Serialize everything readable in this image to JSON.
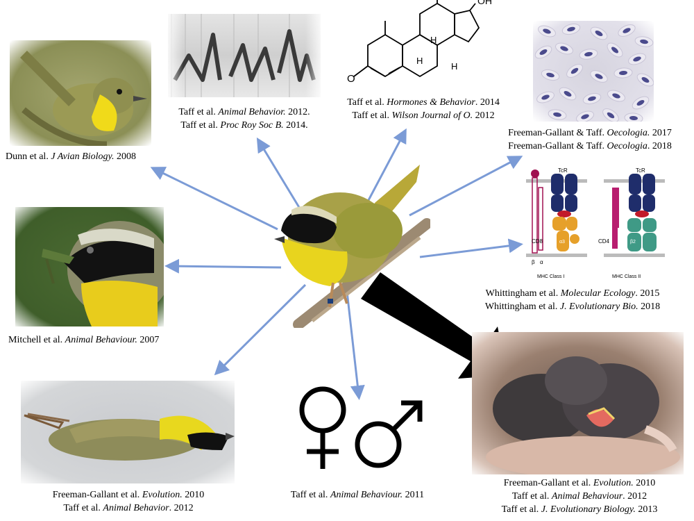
{
  "arrow_color": "#7b9bd6",
  "big_arrow_color": "#000000",
  "captions": {
    "warbler": {
      "line1_pre": "Dunn et al. ",
      "line1_it": "J Avian Biology.",
      "line1_post": " 2008"
    },
    "spectrogram": {
      "line1_pre": "Taff et al. ",
      "line1_it": "Animal Behavior.",
      "line1_post": " 2012.",
      "line2_pre": "Taff et al. ",
      "line2_it": "Proc Roy Soc B.",
      "line2_post": " 2014."
    },
    "hormone": {
      "line1_pre": "Taff et al. ",
      "line1_it": "Hormones & Behavior",
      "line1_post": ". 2014",
      "line2_pre": "Taff et al. ",
      "line2_it": "Wilson Journal of O.",
      "line2_post": " 2012"
    },
    "blood": {
      "line1_pre": "Freeman-Gallant & Taff. ",
      "line1_it": "Oecologia.",
      "line1_post": " 2017",
      "line2_pre": "Freeman-Gallant & Taff. ",
      "line2_it": "Oecologia",
      "line2_post": ". 2018"
    },
    "mhc": {
      "line1_pre": "Whittingham et al. ",
      "line1_it": "Molecular Ecology",
      "line1_post": ". 2015",
      "line2_pre": "Whittingham et al. ",
      "line2_it": "J. Evolutionary Bio.",
      "line2_post": " 2018"
    },
    "mask": {
      "line1_pre": "Mitchell et al. ",
      "line1_it": "Animal Behaviour.",
      "line1_post": " 2007"
    },
    "dead": {
      "line1_pre": "Freeman-Gallant et al. ",
      "line1_it": "Evolution.",
      "line1_post": " 2010",
      "line2_pre": "Taff et al. ",
      "line2_it": "Animal Behavior",
      "line2_post": ". 2012"
    },
    "sex": {
      "line1_pre": "Taff et al. ",
      "line1_it": "Animal Behaviour.",
      "line1_post": " 2011"
    },
    "chicks": {
      "line1_pre": "Freeman-Gallant et al. ",
      "line1_it": "Evolution.",
      "line1_post": " 2010",
      "line2_pre": "Taff et al. ",
      "line2_it": "Animal Behaviour",
      "line2_post": ". 2012",
      "line3_pre": "Taff et al. ",
      "line3_it": "J. Evolutionary Biology.",
      "line3_post": " 2013"
    }
  },
  "steroid": {
    "oh_label": "OH",
    "o_label": "O",
    "h1": "H",
    "h2": "H",
    "h3": "H"
  },
  "mhc_diagram": {
    "tcr1": "TcR",
    "tcr2": "TcR",
    "cd8": "CD8",
    "cd4": "CD4",
    "beta": "β",
    "alpha": "α",
    "a3": "α3",
    "b2": "β2",
    "class1": "MHC Class I",
    "class2": "MHC Class II"
  },
  "symbols": {
    "female": "♀",
    "male": "♂"
  }
}
